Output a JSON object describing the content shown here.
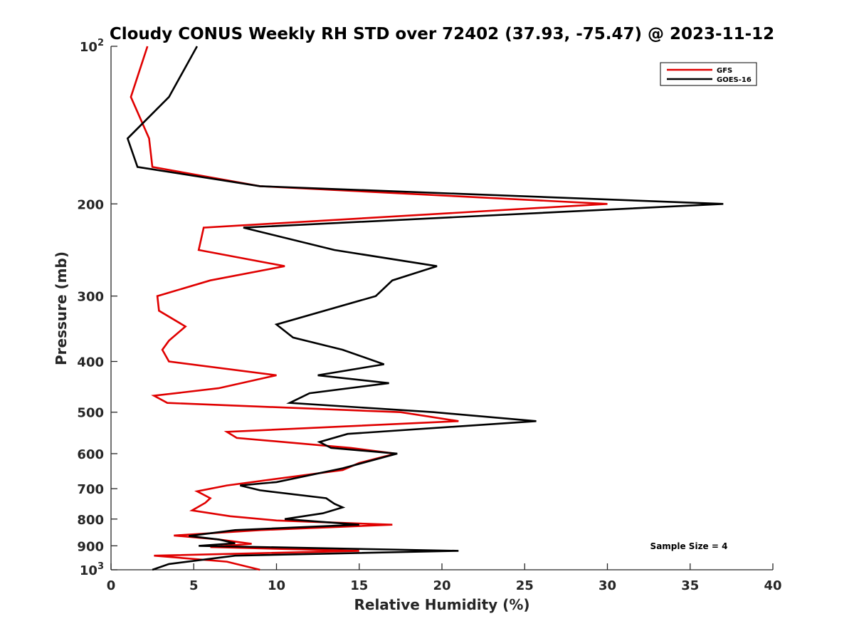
{
  "chart_data": {
    "type": "line",
    "title": "Cloudy CONUS Weekly RH STD over 72402 (37.93, -75.47) @ 2023-11-12",
    "xlabel": "Relative Humidity (%)",
    "ylabel": "Pressure (mb)",
    "xlim": [
      0,
      40
    ],
    "ylim": [
      100,
      1000
    ],
    "y_scale": "log",
    "y_reversed": true,
    "grid": false,
    "legend_position": "top-right",
    "x_ticks": [
      0,
      5,
      10,
      15,
      20,
      25,
      30,
      35,
      40
    ],
    "y_ticks": [
      {
        "value": 100,
        "base": "10",
        "exp": "2"
      },
      {
        "value": 200,
        "label": "200"
      },
      {
        "value": 300,
        "label": "300"
      },
      {
        "value": 400,
        "label": "400"
      },
      {
        "value": 500,
        "label": "500"
      },
      {
        "value": 600,
        "label": "600"
      },
      {
        "value": 700,
        "label": "700"
      },
      {
        "value": 800,
        "label": "800"
      },
      {
        "value": 900,
        "label": "900"
      },
      {
        "value": 1000,
        "base": "10",
        "exp": "3"
      }
    ],
    "annotation": "Sample Size = 4",
    "series": [
      {
        "name": "GFS",
        "color": "#e00000",
        "points": [
          [
            2.2,
            100
          ],
          [
            1.2,
            125
          ],
          [
            2.3,
            150
          ],
          [
            2.5,
            170
          ],
          [
            9.0,
            185
          ],
          [
            30.0,
            200
          ],
          [
            5.6,
            222
          ],
          [
            5.3,
            245
          ],
          [
            10.5,
            263
          ],
          [
            6.0,
            280
          ],
          [
            2.8,
            300
          ],
          [
            2.9,
            320
          ],
          [
            4.5,
            343
          ],
          [
            3.5,
            365
          ],
          [
            3.1,
            380
          ],
          [
            3.5,
            400
          ],
          [
            10.0,
            425
          ],
          [
            6.5,
            450
          ],
          [
            2.6,
            465
          ],
          [
            3.4,
            480
          ],
          [
            17.5,
            500
          ],
          [
            21.0,
            520
          ],
          [
            7.0,
            545
          ],
          [
            7.6,
            560
          ],
          [
            14.5,
            585
          ],
          [
            17.2,
            600
          ],
          [
            15.0,
            625
          ],
          [
            14.0,
            645
          ],
          [
            7.0,
            690
          ],
          [
            5.2,
            708
          ],
          [
            6.0,
            730
          ],
          [
            5.7,
            745
          ],
          [
            4.9,
            770
          ],
          [
            7.2,
            790
          ],
          [
            10.0,
            805
          ],
          [
            17.0,
            820
          ],
          [
            9.0,
            840
          ],
          [
            3.8,
            860
          ],
          [
            6.5,
            875
          ],
          [
            8.5,
            892
          ],
          [
            6.0,
            905
          ],
          [
            15.0,
            920
          ],
          [
            2.6,
            940
          ],
          [
            7.0,
            965
          ],
          [
            9.0,
            1000
          ]
        ]
      },
      {
        "name": "GOES-16",
        "color": "#000000",
        "points": [
          [
            5.2,
            100
          ],
          [
            3.5,
            125
          ],
          [
            1.0,
            150
          ],
          [
            1.6,
            170
          ],
          [
            9.0,
            185
          ],
          [
            37.0,
            200
          ],
          [
            8.0,
            222
          ],
          [
            13.5,
            245
          ],
          [
            19.7,
            263
          ],
          [
            17.0,
            280
          ],
          [
            16.0,
            300
          ],
          [
            10.0,
            340
          ],
          [
            11.0,
            360
          ],
          [
            14.0,
            380
          ],
          [
            16.5,
            405
          ],
          [
            12.5,
            425
          ],
          [
            16.8,
            440
          ],
          [
            12.0,
            460
          ],
          [
            10.8,
            480
          ],
          [
            19.5,
            500
          ],
          [
            25.7,
            520
          ],
          [
            14.3,
            550
          ],
          [
            12.6,
            570
          ],
          [
            13.3,
            585
          ],
          [
            17.3,
            600
          ],
          [
            14.0,
            640
          ],
          [
            10.0,
            680
          ],
          [
            7.8,
            690
          ],
          [
            9.0,
            705
          ],
          [
            13.0,
            730
          ],
          [
            13.5,
            748
          ],
          [
            14.0,
            760
          ],
          [
            12.8,
            780
          ],
          [
            10.5,
            800
          ],
          [
            15.0,
            820
          ],
          [
            7.5,
            840
          ],
          [
            4.7,
            862
          ],
          [
            6.5,
            875
          ],
          [
            7.5,
            890
          ],
          [
            5.3,
            900
          ],
          [
            21.0,
            920
          ],
          [
            7.5,
            940
          ],
          [
            3.5,
            975
          ],
          [
            2.5,
            1000
          ]
        ]
      }
    ]
  }
}
